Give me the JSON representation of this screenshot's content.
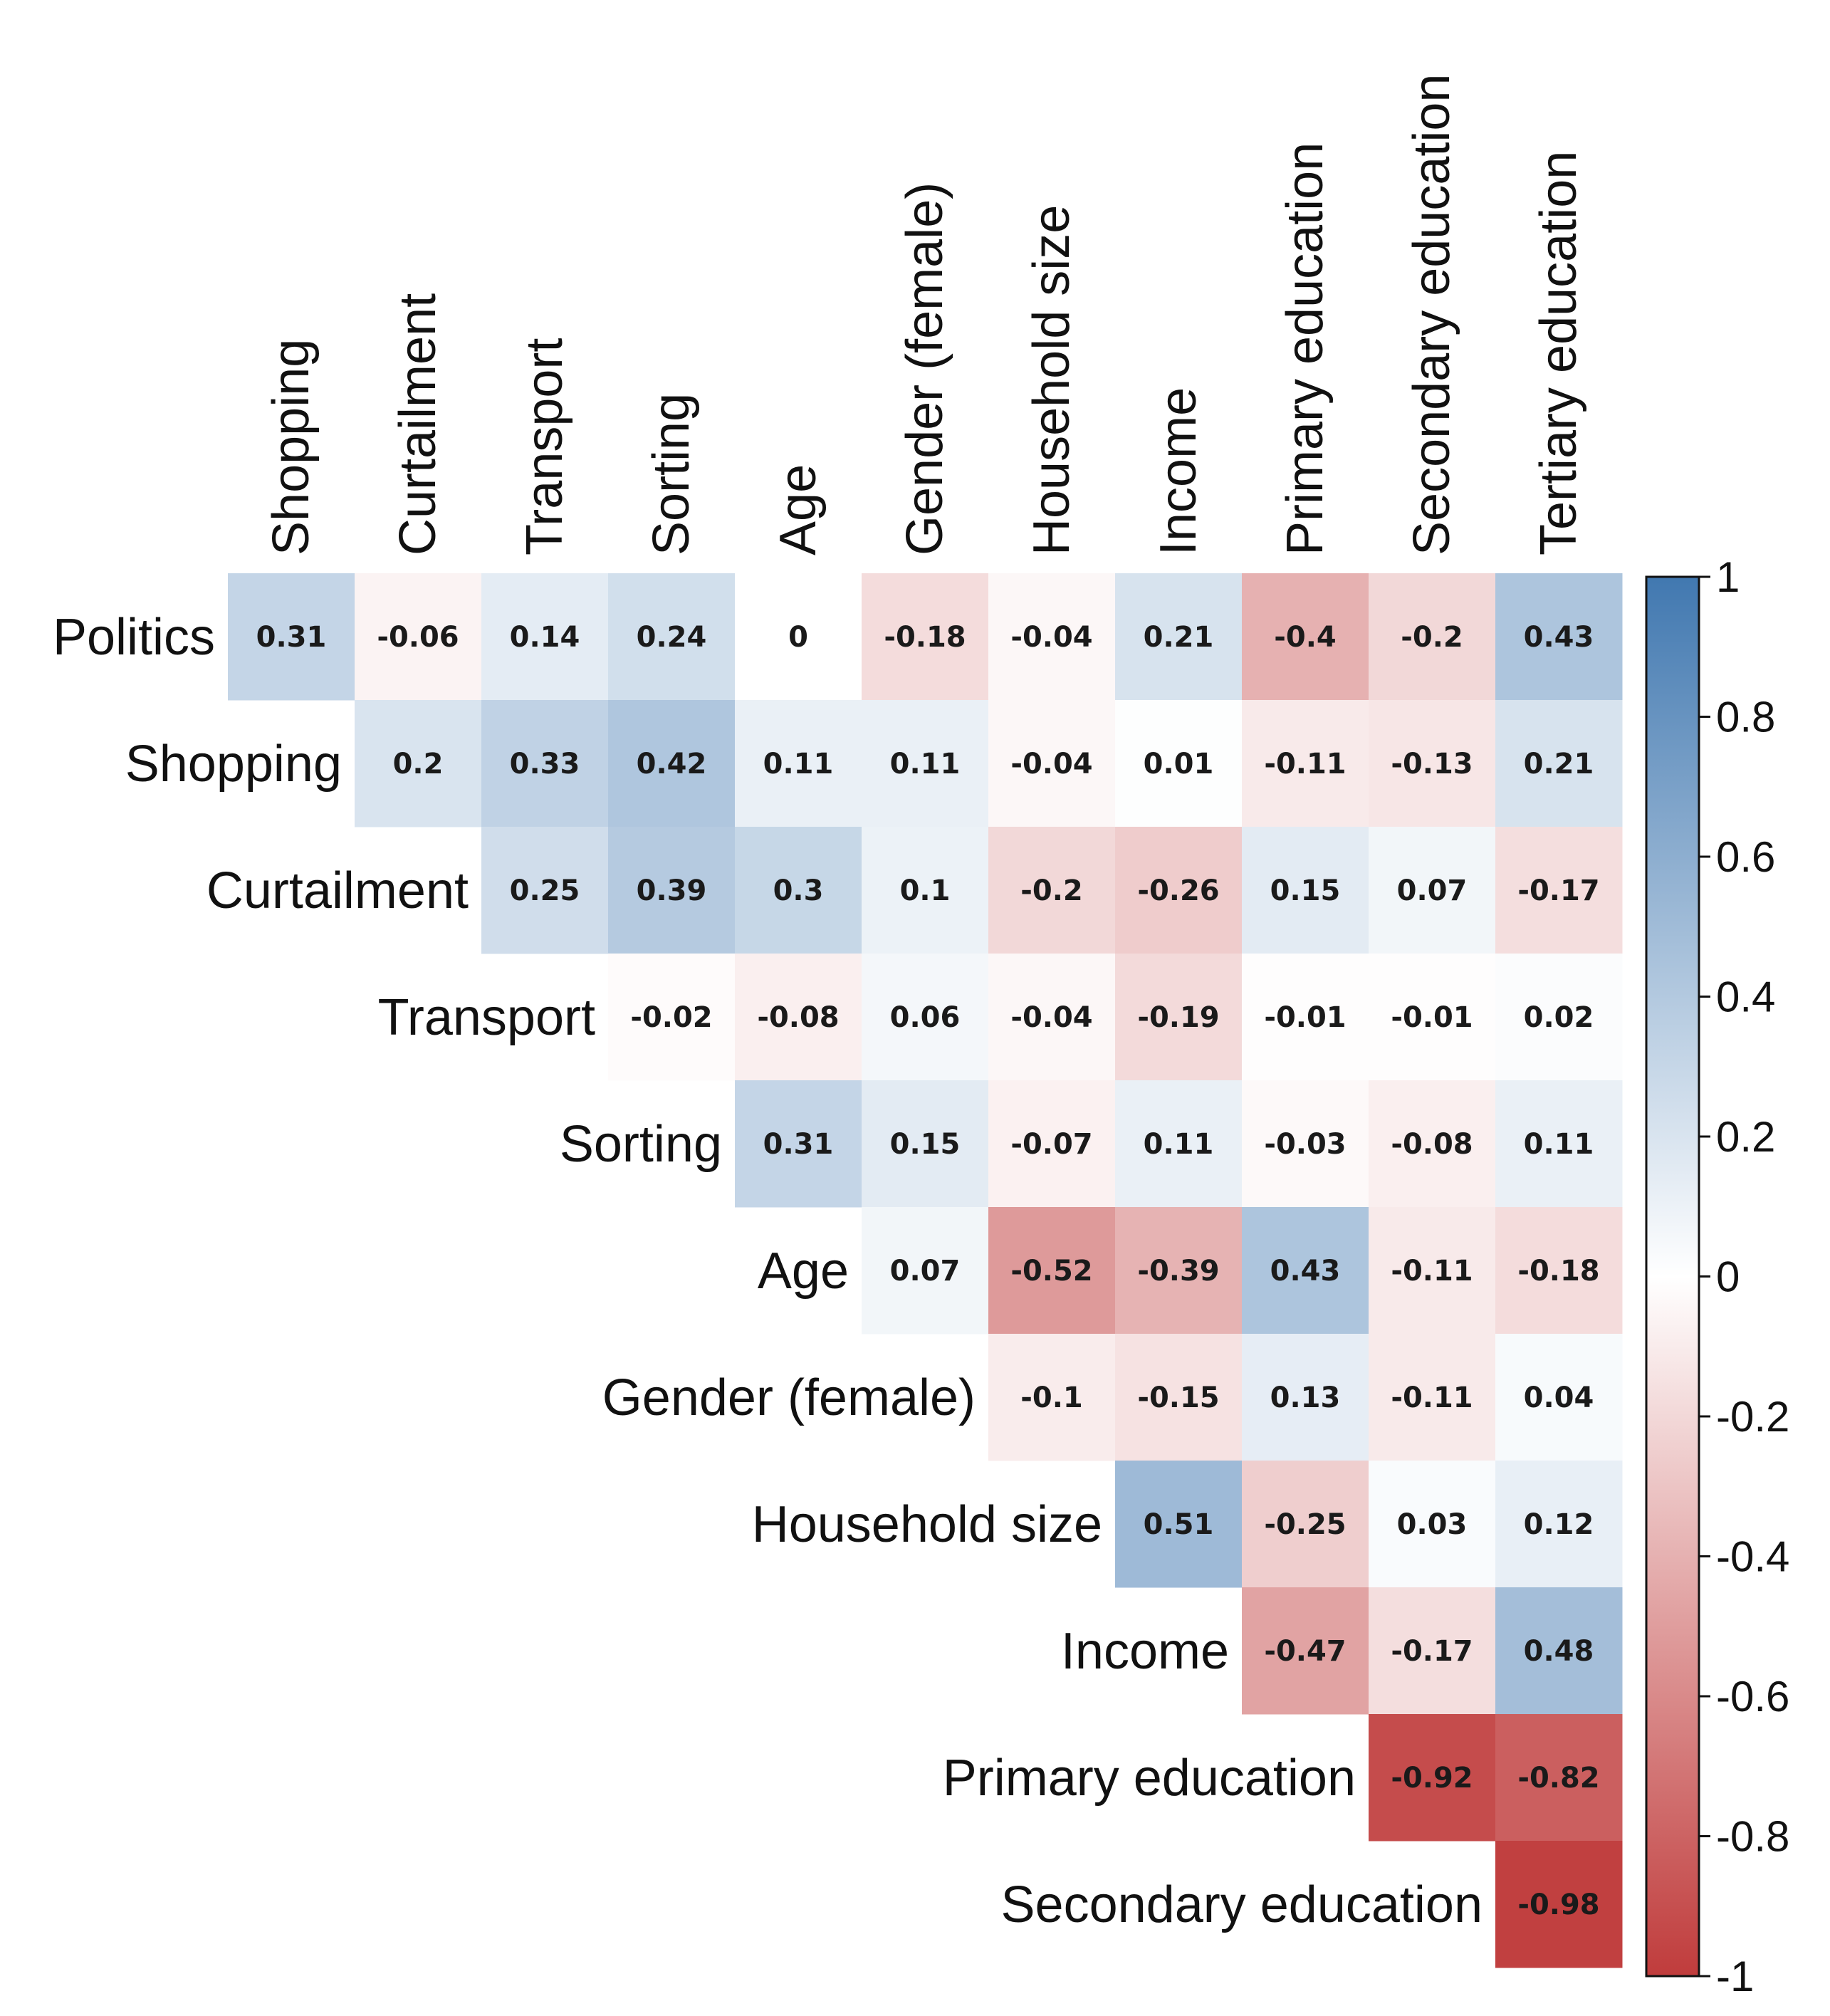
{
  "chart_data": {
    "type": "heatmap",
    "title": "",
    "shape": "upper-triangle correlation matrix",
    "row_labels": [
      "Politics",
      "Shopping",
      "Curtailment",
      "Transport",
      "Sorting",
      "Age",
      "Gender (female)",
      "Household size",
      "Income",
      "Primary education",
      "Secondary education"
    ],
    "col_labels": [
      "Shopping",
      "Curtailment",
      "Transport",
      "Sorting",
      "Age",
      "Gender (female)",
      "Household size",
      "Income",
      "Primary education",
      "Secondary education",
      "Tertiary education"
    ],
    "rows": [
      {
        "label": "Politics",
        "values": [
          "0.31",
          "-0.06",
          "0.14",
          "0.24",
          "0",
          "-0.18",
          "-0.04",
          "0.21",
          "-0.4",
          "-0.2",
          "0.43"
        ]
      },
      {
        "label": "Shopping",
        "values": [
          "0.2",
          "0.33",
          "0.42",
          "0.11",
          "0.11",
          "-0.04",
          "0.01",
          "-0.11",
          "-0.13",
          "0.21"
        ]
      },
      {
        "label": "Curtailment",
        "values": [
          "0.25",
          "0.39",
          "0.3",
          "0.1",
          "-0.2",
          "-0.26",
          "0.15",
          "0.07",
          "-0.17"
        ]
      },
      {
        "label": "Transport",
        "values": [
          "-0.02",
          "-0.08",
          "0.06",
          "-0.04",
          "-0.19",
          "-0.01",
          "-0.01",
          "0.02"
        ]
      },
      {
        "label": "Sorting",
        "values": [
          "0.31",
          "0.15",
          "-0.07",
          "0.11",
          "-0.03",
          "-0.08",
          "0.11"
        ]
      },
      {
        "label": "Age",
        "values": [
          "0.07",
          "-0.52",
          "-0.39",
          "0.43",
          "-0.11",
          "-0.18"
        ]
      },
      {
        "label": "Gender (female)",
        "values": [
          "-0.1",
          "-0.15",
          "0.13",
          "-0.11",
          "0.04"
        ]
      },
      {
        "label": "Household size",
        "values": [
          "0.51",
          "-0.25",
          "0.03",
          "0.12"
        ]
      },
      {
        "label": "Income",
        "values": [
          "-0.47",
          "-0.17",
          "0.48"
        ]
      },
      {
        "label": "Primary education",
        "values": [
          "-0.92",
          "-0.82"
        ]
      },
      {
        "label": "Secondary education",
        "values": [
          "-0.98"
        ]
      }
    ],
    "colorbar": {
      "range": [
        -1,
        1
      ],
      "ticks": [
        "1",
        "0.8",
        "0.6",
        "0.4",
        "0.2",
        "0",
        "-0.2",
        "-0.4",
        "-0.6",
        "-0.8",
        "-1"
      ],
      "colors": {
        "negative": "#c03c3c",
        "mid": "#ffffff",
        "positive": "#4178b0"
      }
    }
  }
}
